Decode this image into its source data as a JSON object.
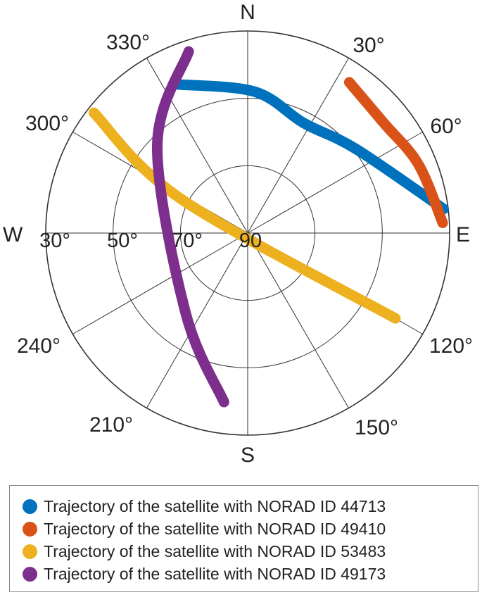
{
  "chart_data": {
    "type": "polar-skyplot",
    "cardinal_labels": {
      "north": "N",
      "east": "E",
      "south": "S",
      "west": "W"
    },
    "azimuth_tick_labels": [
      {
        "azimuth_deg": 30,
        "text": "30°"
      },
      {
        "azimuth_deg": 60,
        "text": "60°"
      },
      {
        "azimuth_deg": 120,
        "text": "120°"
      },
      {
        "azimuth_deg": 150,
        "text": "150°"
      },
      {
        "azimuth_deg": 210,
        "text": "210°"
      },
      {
        "azimuth_deg": 240,
        "text": "240°"
      },
      {
        "azimuth_deg": 300,
        "text": "300°"
      },
      {
        "azimuth_deg": 330,
        "text": "330°"
      }
    ],
    "elevation_ring_labels": [
      {
        "elevation_deg": 30,
        "text": "30°"
      },
      {
        "elevation_deg": 50,
        "text": "50°"
      },
      {
        "elevation_deg": 70,
        "text": "70°"
      },
      {
        "elevation_deg": 90,
        "text": "90"
      }
    ],
    "elevation_rings_deg": [
      0,
      30,
      60
    ],
    "radial_spokes_every_deg": 30,
    "grid": true,
    "legend_position": "bottom",
    "series": [
      {
        "name": "Trajectory of the satellite with NORAD ID 44713",
        "color": "#0072BD",
        "points": [
          {
            "az": 335,
            "el": 17
          },
          {
            "az": 3,
            "el": 27
          },
          {
            "az": 27,
            "el": 35
          },
          {
            "az": 52,
            "el": 29
          },
          {
            "az": 83,
            "el": 2
          }
        ]
      },
      {
        "name": "Trajectory of the satellite with NORAD ID 49410",
        "color": "#D95319",
        "points": [
          {
            "az": 34,
            "el": 9
          },
          {
            "az": 51,
            "el": 12
          },
          {
            "az": 68,
            "el": 8
          },
          {
            "az": 87,
            "el": 3
          }
        ]
      },
      {
        "name": "Trajectory of the satellite with NORAD ID 53483",
        "color": "#EDB120",
        "points": [
          {
            "az": 308,
            "el": 3
          },
          {
            "az": 297,
            "el": 57
          },
          {
            "az": 120,
            "el": 14
          }
        ]
      },
      {
        "name": "Trajectory of the satellite with NORAD ID 49173",
        "color": "#7E2F8E",
        "points": [
          {
            "az": 342,
            "el": 5
          },
          {
            "az": 314,
            "el": 34
          },
          {
            "az": 218,
            "el": 45
          },
          {
            "az": 188,
            "el": 14
          }
        ]
      }
    ]
  }
}
